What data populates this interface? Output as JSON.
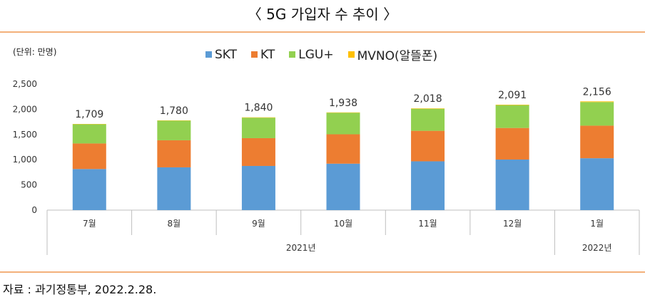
{
  "title": "〈 5G 가입자 수 추이 〉",
  "unit_label": "(단위: 만명)",
  "source": "자료 : 과기정통부, 2022.2.28.",
  "colors": {
    "SKT": "#5b9bd5",
    "KT": "#ed7d31",
    "LGU+": "#92d050",
    "MVNO": "#ffc000",
    "rule": "#f3b07a"
  },
  "chart_data": {
    "type": "bar",
    "stacked": true,
    "categories": [
      "7월",
      "8월",
      "9월",
      "10월",
      "11월",
      "12월",
      "1월"
    ],
    "groups": [
      {
        "label": "2021년",
        "categories": [
          "7월",
          "8월",
          "9월",
          "10월",
          "11월",
          "12월"
        ]
      },
      {
        "label": "2022년",
        "categories": [
          "1월"
        ]
      }
    ],
    "series": [
      {
        "name": "SKT",
        "values": [
          815,
          848,
          876,
          921,
          968,
          1003,
          1029
        ]
      },
      {
        "name": "KT",
        "values": [
          507,
          537,
          551,
          583,
          605,
          626,
          646
        ]
      },
      {
        "name": "LGU+",
        "values": [
          381,
          389,
          406,
          427,
          437,
          453,
          468
        ]
      },
      {
        "name": "MVNO(알뜰폰)",
        "values": [
          6,
          6,
          7,
          7,
          8,
          9,
          13
        ]
      }
    ],
    "totals": [
      "1,709",
      "1,780",
      "1,840",
      "1,938",
      "2,018",
      "2,091",
      "2,156"
    ],
    "ylim": [
      0,
      2500
    ],
    "yticks": [
      "0",
      "500",
      "1,000",
      "1,500",
      "2,000",
      "2,500"
    ],
    "legend_position": "top"
  }
}
